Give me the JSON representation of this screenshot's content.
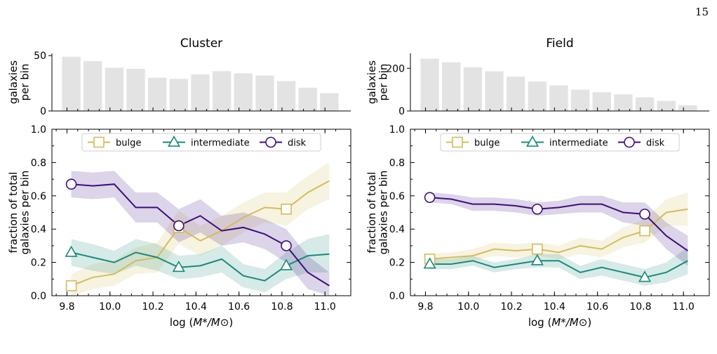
{
  "page_number": "15",
  "chart_data": [
    {
      "id": "cluster",
      "title": "Cluster",
      "type": "bar",
      "hist_ylabel_lines": [
        "galaxies",
        "per bin"
      ],
      "hist_ylim": [
        0,
        52
      ],
      "hist_yticks": [
        0,
        50
      ],
      "hist_counts": [
        49,
        45,
        39,
        38,
        30,
        29,
        33,
        36,
        34,
        32,
        27,
        21,
        16
      ],
      "xlabel": "log (M*/M⊙)",
      "xlim": [
        9.73,
        11.12
      ],
      "xticks": [
        "9.8",
        "10.0",
        "10.2",
        "10.4",
        "10.6",
        "10.8",
        "11.0"
      ],
      "ylabel_lines": [
        "fraction of total",
        "galaxies per bin"
      ],
      "ylim": [
        0,
        1
      ],
      "yticks": [
        "0.0",
        "0.2",
        "0.4",
        "0.6",
        "0.8",
        "1.0"
      ],
      "x": [
        9.82,
        9.92,
        10.02,
        10.12,
        10.22,
        10.32,
        10.42,
        10.52,
        10.62,
        10.72,
        10.82,
        10.92,
        11.02
      ],
      "series": [
        {
          "name": "bulge",
          "color": "#d4bc5a",
          "marker": "square",
          "values": [
            0.06,
            0.11,
            0.13,
            0.21,
            0.23,
            0.41,
            0.33,
            0.39,
            0.47,
            0.53,
            0.52,
            0.62,
            0.69
          ],
          "lower": [
            0.0,
            0.04,
            0.06,
            0.13,
            0.14,
            0.31,
            0.24,
            0.3,
            0.38,
            0.44,
            0.42,
            0.52,
            0.58
          ],
          "upper": [
            0.13,
            0.19,
            0.21,
            0.29,
            0.32,
            0.51,
            0.42,
            0.48,
            0.56,
            0.62,
            0.62,
            0.72,
            0.8
          ]
        },
        {
          "name": "intermediate",
          "color": "#1a8a7a",
          "marker": "triangle",
          "values": [
            0.26,
            0.23,
            0.2,
            0.26,
            0.23,
            0.17,
            0.18,
            0.22,
            0.12,
            0.09,
            0.18,
            0.24,
            0.25
          ],
          "lower": [
            0.18,
            0.15,
            0.13,
            0.18,
            0.15,
            0.1,
            0.11,
            0.14,
            0.05,
            0.02,
            0.1,
            0.14,
            0.14
          ],
          "upper": [
            0.34,
            0.31,
            0.27,
            0.34,
            0.31,
            0.24,
            0.25,
            0.3,
            0.19,
            0.16,
            0.26,
            0.34,
            0.37
          ]
        },
        {
          "name": "disk",
          "color": "#3f0e7e",
          "marker": "circle",
          "values": [
            0.67,
            0.66,
            0.67,
            0.53,
            0.53,
            0.42,
            0.48,
            0.39,
            0.41,
            0.37,
            0.3,
            0.14,
            0.06
          ],
          "lower": [
            0.59,
            0.58,
            0.59,
            0.44,
            0.44,
            0.32,
            0.38,
            0.3,
            0.32,
            0.28,
            0.2,
            0.04,
            0.0
          ],
          "upper": [
            0.75,
            0.74,
            0.75,
            0.62,
            0.62,
            0.52,
            0.58,
            0.48,
            0.5,
            0.46,
            0.4,
            0.24,
            0.14
          ]
        }
      ],
      "marker_x": [
        9.82,
        10.32,
        10.82
      ],
      "legend": {
        "placement": "top-center",
        "items": [
          "bulge",
          "intermediate",
          "disk"
        ]
      }
    },
    {
      "id": "field",
      "title": "Field",
      "type": "bar",
      "hist_ylabel_lines": [
        "galaxies",
        "per bin"
      ],
      "hist_ylim": [
        0,
        270
      ],
      "hist_yticks": [
        0,
        200
      ],
      "hist_counts": [
        245,
        228,
        205,
        186,
        161,
        138,
        120,
        100,
        88,
        78,
        64,
        47,
        27
      ],
      "xlabel": "log (M*/M⊙)",
      "xlim": [
        9.73,
        11.12
      ],
      "xticks": [
        "9.8",
        "10.0",
        "10.2",
        "10.4",
        "10.6",
        "10.8",
        "11.0"
      ],
      "ylabel_lines": [
        "fraction of total",
        "galaxies per bin"
      ],
      "ylim": [
        0,
        1
      ],
      "yticks": [
        "0.0",
        "0.2",
        "0.4",
        "0.6",
        "0.8",
        "1.0"
      ],
      "x": [
        9.82,
        9.92,
        10.02,
        10.12,
        10.22,
        10.32,
        10.42,
        10.52,
        10.62,
        10.72,
        10.82,
        10.92,
        11.02
      ],
      "series": [
        {
          "name": "bulge",
          "color": "#d4bc5a",
          "marker": "square",
          "values": [
            0.22,
            0.23,
            0.24,
            0.28,
            0.27,
            0.28,
            0.26,
            0.3,
            0.28,
            0.35,
            0.39,
            0.5,
            0.52
          ],
          "lower": [
            0.19,
            0.2,
            0.21,
            0.24,
            0.23,
            0.24,
            0.22,
            0.25,
            0.23,
            0.29,
            0.32,
            0.42,
            0.42
          ],
          "upper": [
            0.25,
            0.26,
            0.28,
            0.32,
            0.31,
            0.32,
            0.3,
            0.35,
            0.33,
            0.41,
            0.46,
            0.58,
            0.62
          ]
        },
        {
          "name": "intermediate",
          "color": "#1a8a7a",
          "marker": "triangle",
          "values": [
            0.19,
            0.19,
            0.21,
            0.17,
            0.19,
            0.21,
            0.21,
            0.14,
            0.17,
            0.14,
            0.11,
            0.14,
            0.21
          ],
          "lower": [
            0.16,
            0.16,
            0.18,
            0.14,
            0.16,
            0.17,
            0.17,
            0.1,
            0.12,
            0.09,
            0.06,
            0.08,
            0.13
          ],
          "upper": [
            0.22,
            0.22,
            0.24,
            0.2,
            0.22,
            0.25,
            0.25,
            0.18,
            0.22,
            0.19,
            0.16,
            0.2,
            0.29
          ]
        },
        {
          "name": "disk",
          "color": "#3f0e7e",
          "marker": "circle",
          "values": [
            0.59,
            0.58,
            0.55,
            0.55,
            0.54,
            0.52,
            0.53,
            0.55,
            0.55,
            0.5,
            0.49,
            0.36,
            0.27
          ],
          "lower": [
            0.56,
            0.55,
            0.51,
            0.51,
            0.5,
            0.48,
            0.49,
            0.5,
            0.5,
            0.44,
            0.42,
            0.28,
            0.18
          ],
          "upper": [
            0.62,
            0.61,
            0.59,
            0.59,
            0.58,
            0.56,
            0.57,
            0.6,
            0.6,
            0.56,
            0.56,
            0.44,
            0.36
          ]
        }
      ],
      "marker_x": [
        9.82,
        10.32,
        10.82
      ],
      "legend": {
        "placement": "top-center",
        "items": [
          "bulge",
          "intermediate",
          "disk"
        ]
      }
    }
  ]
}
